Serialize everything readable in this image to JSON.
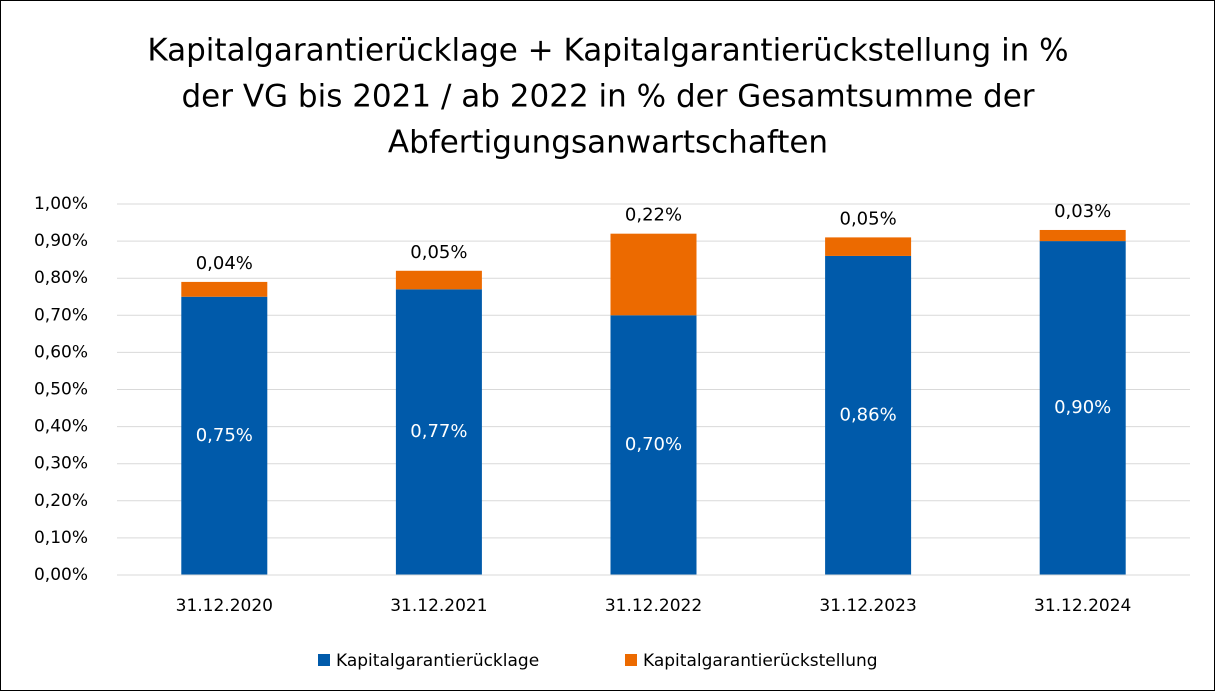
{
  "chart_data": {
    "type": "stacked_bar",
    "title": [
      "Kapitalgarantierücklage + Kapitalgarantierückstellung in %",
      "der VG bis 2021 / ab 2022 in % der Gesamtsumme der",
      "Abfertigungsanwartschaften"
    ],
    "categories": [
      "31.12.2020",
      "31.12.2021",
      "31.12.2022",
      "31.12.2023",
      "31.12.2024"
    ],
    "series": [
      {
        "name": "Kapitalgarantierücklage",
        "color": "#005aaa",
        "values": [
          0.75,
          0.77,
          0.7,
          0.86,
          0.9
        ],
        "value_labels": [
          "0,75%",
          "0,77%",
          "0,70%",
          "0,86%",
          "0,90%"
        ]
      },
      {
        "name": "Kapitalgarantierückstellung",
        "color": "#ec6a00",
        "values": [
          0.04,
          0.05,
          0.22,
          0.05,
          0.03
        ],
        "value_labels": [
          "0,04%",
          "0,05%",
          "0,22%",
          "0,05%",
          "0,03%"
        ]
      }
    ],
    "ylim": [
      0,
      1
    ],
    "yticks": [
      {
        "value": 0,
        "label": "0,00%"
      },
      {
        "value": 0.1,
        "label": "0,10%"
      },
      {
        "value": 0.2,
        "label": "0,20%"
      },
      {
        "value": 0.3,
        "label": "0,30%"
      },
      {
        "value": 0.4,
        "label": "0,40%"
      },
      {
        "value": 0.5,
        "label": "0,50%"
      },
      {
        "value": 0.6,
        "label": "0,60%"
      },
      {
        "value": 0.7,
        "label": "0,70%"
      },
      {
        "value": 0.8,
        "label": "0,80%"
      },
      {
        "value": 0.9,
        "label": "0,90%"
      },
      {
        "value": 1,
        "label": "1,00%"
      }
    ],
    "grid": true,
    "legend": "bottom"
  }
}
